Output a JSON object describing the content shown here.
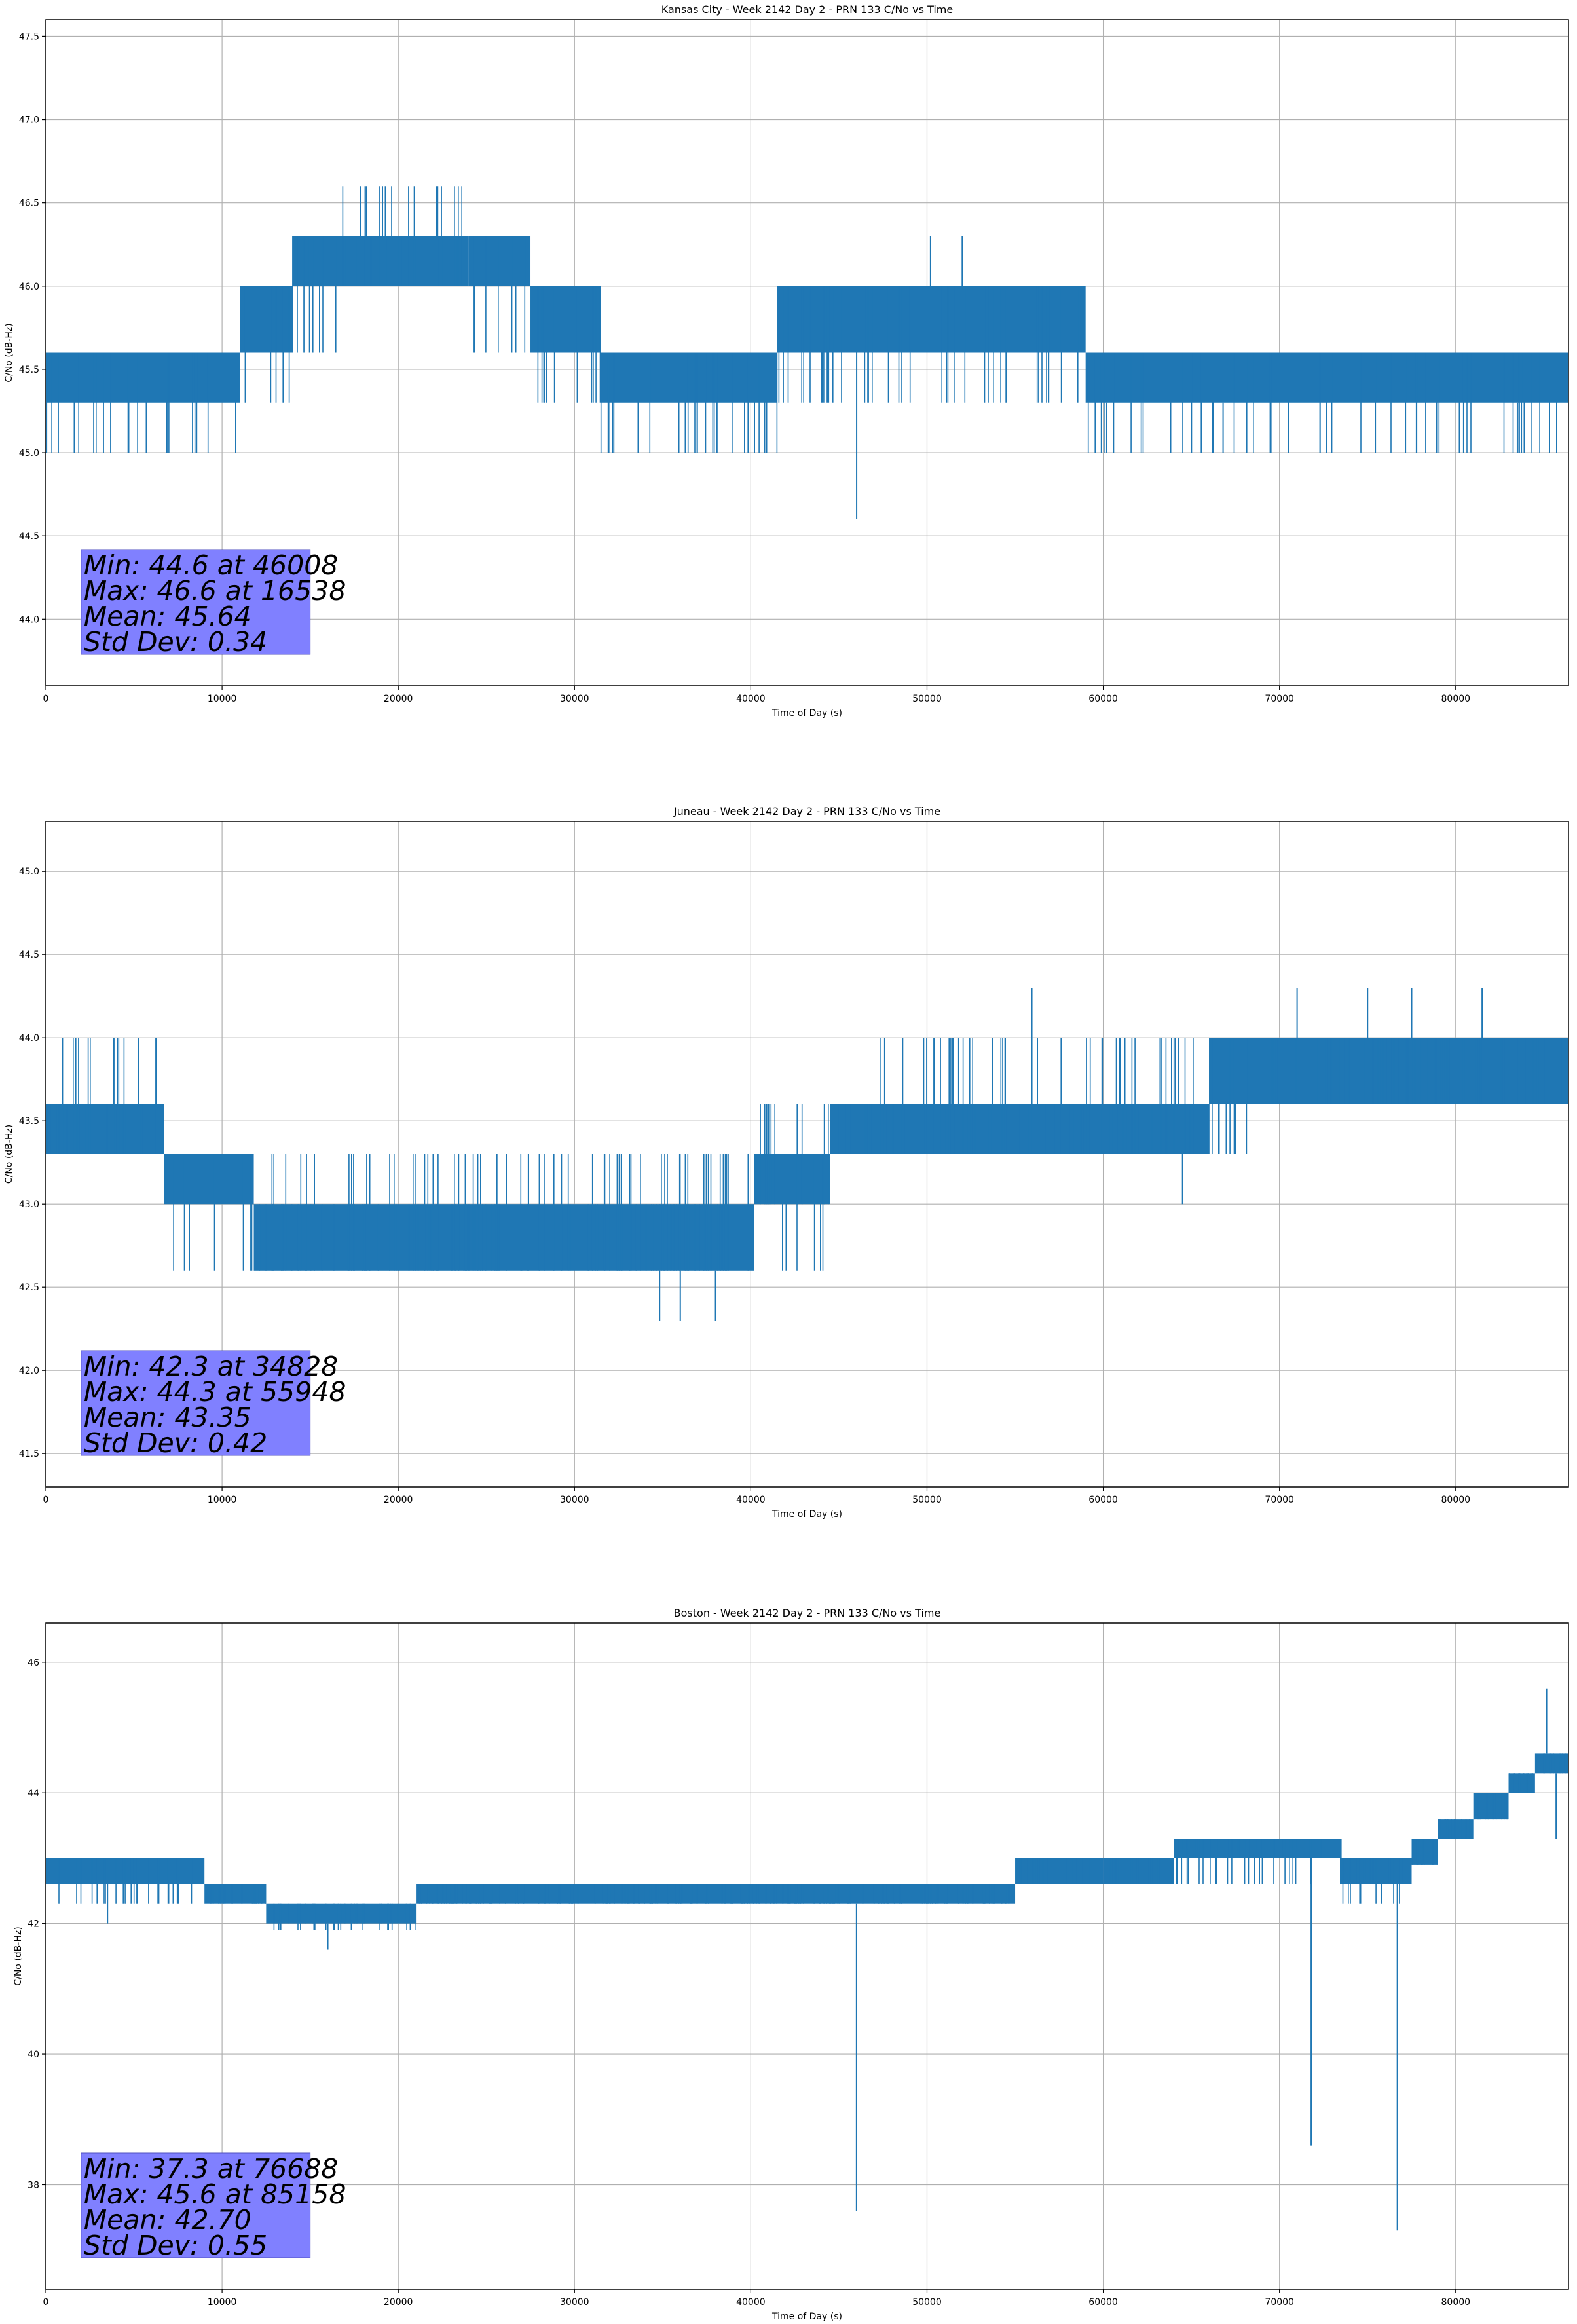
{
  "chart_data": [
    {
      "type": "line",
      "title": "Kansas City - Week 2142 Day 2 - PRN 133 C/No vs Time",
      "xlabel": "Time of Day (s)",
      "ylabel": "C/No (dB-Hz)",
      "xlim": [
        0,
        86400
      ],
      "ylim": [
        43.6,
        47.6
      ],
      "xticks": [
        0,
        10000,
        20000,
        30000,
        40000,
        50000,
        60000,
        70000,
        80000
      ],
      "yticks": [
        "44.0",
        "44.5",
        "45.0",
        "45.5",
        "46.0",
        "46.5",
        "47.0",
        "47.5"
      ],
      "grid": true,
      "line_color": "#1f77b4",
      "stats": [
        "Min: 44.6 at 46008",
        "Max: 46.6 at 16538",
        "Mean: 45.64",
        "Std Dev: 0.34"
      ],
      "stats_box_color": "#8080ff",
      "segments": [
        {
          "x": [
            0,
            11000
          ],
          "band": [
            45.0,
            45.6
          ],
          "base": [
            45.3,
            45.6
          ],
          "lo": [
            45.0,
            45.3
          ]
        },
        {
          "x": [
            11000,
            14000
          ],
          "band": [
            45.3,
            46.0
          ],
          "base": [
            45.6,
            46.0
          ],
          "lo": [
            45.3,
            45.6
          ]
        },
        {
          "x": [
            14000,
            16500
          ],
          "band": [
            45.6,
            46.3
          ],
          "base": [
            46.0,
            46.3
          ],
          "lo": [
            45.6,
            46.0
          ]
        },
        {
          "x": [
            16500,
            24000
          ],
          "band": [
            46.0,
            46.6
          ],
          "base": [
            46.0,
            46.3
          ],
          "lo": [
            46.0,
            46.6
          ]
        },
        {
          "x": [
            24000,
            27500
          ],
          "band": [
            45.6,
            46.3
          ],
          "base": [
            46.0,
            46.3
          ],
          "lo": [
            45.6,
            46.0
          ]
        },
        {
          "x": [
            27500,
            31500
          ],
          "band": [
            45.3,
            46.0
          ],
          "base": [
            45.6,
            46.0
          ],
          "lo": [
            45.3,
            45.6
          ]
        },
        {
          "x": [
            31500,
            41500
          ],
          "band": [
            45.0,
            45.6
          ],
          "base": [
            45.3,
            45.6
          ],
          "lo": [
            45.0,
            45.3
          ]
        },
        {
          "x": [
            41500,
            59000
          ],
          "band": [
            45.3,
            46.0
          ],
          "base": [
            45.6,
            46.0
          ],
          "lo": [
            45.3,
            45.6
          ]
        },
        {
          "x": [
            59000,
            86400
          ],
          "band": [
            45.0,
            45.6
          ],
          "base": [
            45.3,
            45.6
          ],
          "lo": [
            45.0,
            45.3
          ]
        }
      ],
      "spikes": [
        [
          46008,
          44.6
        ],
        [
          50200,
          46.3
        ],
        [
          52000,
          46.3
        ],
        [
          60200,
          45.0
        ],
        [
          66800,
          45.0
        ],
        [
          83500,
          45.0
        ]
      ]
    },
    {
      "type": "line",
      "title": "Juneau - Week 2142 Day 2 - PRN 133 C/No vs Time",
      "xlabel": "Time of Day (s)",
      "ylabel": "C/No (dB-Hz)",
      "xlim": [
        0,
        86400
      ],
      "ylim": [
        41.3,
        45.3
      ],
      "xticks": [
        0,
        10000,
        20000,
        30000,
        40000,
        50000,
        60000,
        70000,
        80000
      ],
      "yticks": [
        "41.5",
        "42.0",
        "42.5",
        "43.0",
        "43.5",
        "44.0",
        "44.5",
        "45.0"
      ],
      "grid": true,
      "line_color": "#1f77b4",
      "stats": [
        "Min: 42.3 at 34828",
        "Max: 44.3 at 55948",
        "Mean: 43.35",
        "Std Dev: 0.42"
      ],
      "stats_box_color": "#8080ff",
      "segments": [
        {
          "x": [
            0,
            6700
          ],
          "band": [
            43.3,
            44.0
          ],
          "base": [
            43.3,
            43.6
          ],
          "lo": [
            43.3,
            44.0
          ]
        },
        {
          "x": [
            6700,
            11800
          ],
          "band": [
            42.6,
            43.3
          ],
          "base": [
            43.0,
            43.3
          ],
          "lo": [
            42.6,
            43.0
          ]
        },
        {
          "x": [
            11800,
            40200
          ],
          "band": [
            42.6,
            43.3
          ],
          "base": [
            42.6,
            43.0
          ],
          "lo": [
            42.6,
            43.3
          ]
        },
        {
          "x": [
            40200,
            44500
          ],
          "band": [
            42.6,
            43.6
          ],
          "base": [
            43.0,
            43.3
          ],
          "lo": [
            42.6,
            43.6
          ]
        },
        {
          "x": [
            44500,
            47000
          ],
          "band": [
            43.3,
            43.6
          ],
          "base": [
            43.3,
            43.6
          ],
          "lo": [
            43.3,
            43.6
          ]
        },
        {
          "x": [
            47000,
            66000
          ],
          "band": [
            43.3,
            44.0
          ],
          "base": [
            43.3,
            43.6
          ],
          "lo": [
            43.3,
            44.0
          ]
        },
        {
          "x": [
            66000,
            69500
          ],
          "band": [
            43.3,
            44.0
          ],
          "base": [
            43.6,
            44.0
          ],
          "lo": [
            43.3,
            43.6
          ]
        },
        {
          "x": [
            69500,
            86400
          ],
          "band": [
            43.6,
            44.0
          ],
          "base": [
            43.6,
            44.0
          ],
          "lo": [
            43.6,
            44.0
          ]
        }
      ],
      "spikes": [
        [
          34828,
          42.3
        ],
        [
          36000,
          42.3
        ],
        [
          38000,
          42.3
        ],
        [
          55948,
          44.3
        ],
        [
          71000,
          44.3
        ],
        [
          75000,
          44.3
        ],
        [
          77500,
          44.3
        ],
        [
          81500,
          44.3
        ],
        [
          64500,
          43.0
        ]
      ]
    },
    {
      "type": "line",
      "title": "Boston - Week 2142 Day 2 - PRN 133 C/No vs Time",
      "xlabel": "Time of Day (s)",
      "ylabel": "C/No (dB-Hz)",
      "xlim": [
        0,
        86400
      ],
      "ylim": [
        36.4,
        46.6
      ],
      "xticks": [
        0,
        10000,
        20000,
        30000,
        40000,
        50000,
        60000,
        70000,
        80000
      ],
      "yticks": [
        "38",
        "40",
        "42",
        "44",
        "46"
      ],
      "grid": true,
      "line_color": "#1f77b4",
      "stats": [
        "Min: 37.3 at 76688",
        "Max: 45.6 at 85158",
        "Mean: 42.70",
        "Std Dev: 0.55"
      ],
      "stats_box_color": "#8080ff",
      "segments": [
        {
          "x": [
            0,
            9000
          ],
          "band": [
            42.3,
            43.0
          ],
          "base": [
            42.6,
            43.0
          ],
          "lo": [
            42.3,
            42.6
          ]
        },
        {
          "x": [
            9000,
            12500
          ],
          "band": [
            42.3,
            42.6
          ],
          "base": [
            42.3,
            42.6
          ],
          "lo": [
            42.3,
            42.6
          ]
        },
        {
          "x": [
            12500,
            21000
          ],
          "band": [
            41.9,
            42.3
          ],
          "base": [
            42.0,
            42.3
          ],
          "lo": [
            41.9,
            42.3
          ]
        },
        {
          "x": [
            21000,
            55000
          ],
          "band": [
            42.3,
            42.6
          ],
          "base": [
            42.3,
            42.6
          ],
          "lo": [
            42.3,
            42.6
          ]
        },
        {
          "x": [
            55000,
            60000
          ],
          "band": [
            42.6,
            43.0
          ],
          "base": [
            42.6,
            43.0
          ],
          "lo": [
            42.6,
            43.0
          ]
        },
        {
          "x": [
            60000,
            64000
          ],
          "band": [
            42.6,
            43.0
          ],
          "base": [
            42.6,
            43.0
          ],
          "lo": [
            42.6,
            43.0
          ]
        },
        {
          "x": [
            64000,
            73500
          ],
          "band": [
            43.0,
            43.3
          ],
          "base": [
            43.0,
            43.3
          ],
          "lo": [
            42.6,
            43.3
          ]
        },
        {
          "x": [
            73500,
            77500
          ],
          "band": [
            42.6,
            43.0
          ],
          "base": [
            42.6,
            43.0
          ],
          "lo": [
            42.3,
            43.0
          ]
        },
        {
          "x": [
            77500,
            79000
          ],
          "band": [
            42.9,
            43.3
          ],
          "base": [
            42.9,
            43.3
          ],
          "lo": [
            42.9,
            43.3
          ]
        },
        {
          "x": [
            79000,
            81000
          ],
          "band": [
            43.3,
            43.6
          ],
          "base": [
            43.3,
            43.6
          ],
          "lo": [
            43.3,
            43.6
          ]
        },
        {
          "x": [
            81000,
            83000
          ],
          "band": [
            43.6,
            44.0
          ],
          "base": [
            43.6,
            44.0
          ],
          "lo": [
            43.6,
            44.0
          ]
        },
        {
          "x": [
            83000,
            84500
          ],
          "band": [
            44.0,
            44.3
          ],
          "base": [
            44.0,
            44.3
          ],
          "lo": [
            44.0,
            44.3
          ]
        },
        {
          "x": [
            84500,
            86400
          ],
          "band": [
            44.3,
            44.6
          ],
          "base": [
            44.3,
            44.6
          ],
          "lo": [
            44.3,
            44.6
          ]
        }
      ],
      "spikes": [
        [
          46000,
          37.6
        ],
        [
          71800,
          38.6
        ],
        [
          76688,
          37.3
        ],
        [
          85158,
          45.6
        ],
        [
          85700,
          43.3
        ],
        [
          16000,
          41.6
        ],
        [
          3500,
          42.0
        ]
      ]
    }
  ]
}
